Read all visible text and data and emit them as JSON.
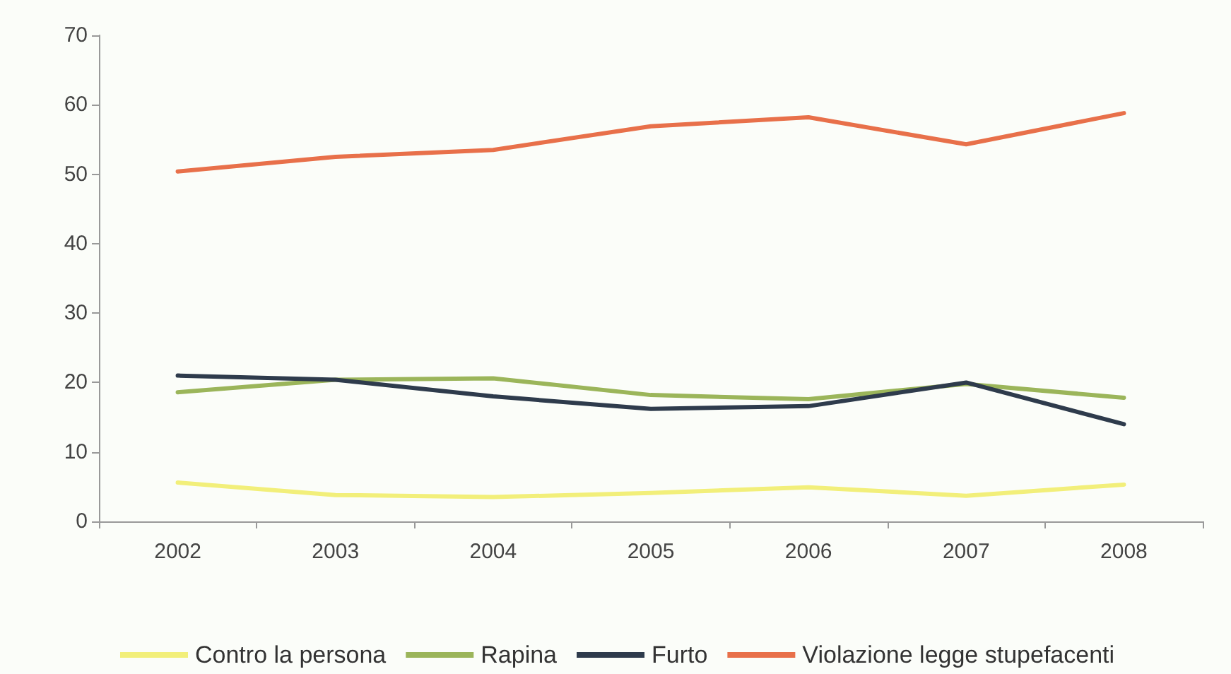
{
  "chart_data": {
    "type": "line",
    "categories": [
      "2002",
      "2003",
      "2004",
      "2005",
      "2006",
      "2007",
      "2008"
    ],
    "series": [
      {
        "name": "Contro la persona",
        "color": "#f2ef7a",
        "values": [
          5.6,
          3.8,
          3.5,
          4.1,
          4.9,
          3.7,
          5.3
        ]
      },
      {
        "name": "Rapina",
        "color": "#9bb55a",
        "values": [
          18.6,
          20.4,
          20.6,
          18.2,
          17.6,
          19.8,
          17.8
        ]
      },
      {
        "name": "Furto",
        "color": "#2e3b4c",
        "values": [
          21.0,
          20.4,
          18.0,
          16.2,
          16.6,
          20.0,
          14.0
        ]
      },
      {
        "name": "Violazione legge stupefacenti",
        "color": "#e8704a",
        "values": [
          50.4,
          52.5,
          53.5,
          56.9,
          58.2,
          54.3,
          58.8
        ]
      }
    ],
    "ylim": [
      0,
      70
    ],
    "yticks": [
      0,
      10,
      20,
      30,
      40,
      50,
      60,
      70
    ],
    "grid": false,
    "legend": "bottom",
    "marker": "none"
  }
}
